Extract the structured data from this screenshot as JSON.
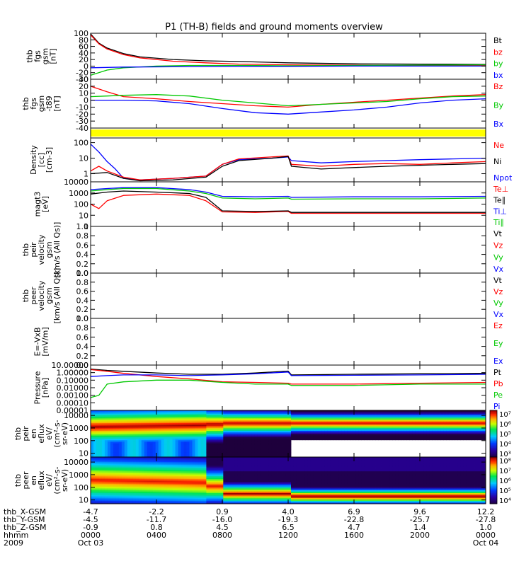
{
  "title": "P1 (TH-B) fields and ground moments overview",
  "colors": {
    "black": "#000000",
    "red": "#ff0000",
    "green": "#00c800",
    "blue": "#0000ff",
    "yellow": "#ffff00"
  },
  "chart_data": [
    {
      "type": "line",
      "ylabel_lines": [
        "thb",
        "fgs",
        "gsm",
        "[nT]"
      ],
      "yticks": [
        "100",
        "80",
        "60",
        "40",
        "20",
        "0",
        "-20",
        "-40"
      ],
      "ylim": [
        -40,
        100
      ],
      "legend": [
        "Bt",
        "bz",
        "by",
        "bx"
      ],
      "legend_colors": [
        "#000000",
        "#ff0000",
        "#00c800",
        "#0000ff"
      ],
      "series": [
        {
          "name": "Bt",
          "color": "#000000",
          "x": [
            0,
            0.5,
            1,
            2,
            3,
            5,
            7,
            9,
            12,
            16,
            20,
            24
          ],
          "y": [
            98,
            70,
            55,
            38,
            28,
            20,
            16,
            14,
            10,
            7,
            6,
            5
          ]
        },
        {
          "name": "bz",
          "color": "#ff0000",
          "x": [
            0,
            0.5,
            1,
            2,
            3,
            5,
            7,
            9,
            12,
            16,
            20,
            24
          ],
          "y": [
            95,
            68,
            52,
            35,
            25,
            15,
            10,
            6,
            4,
            3,
            2,
            2
          ]
        },
        {
          "name": "by",
          "color": "#00c800",
          "x": [
            0,
            1,
            2,
            4,
            6,
            9,
            12,
            16,
            20,
            24
          ],
          "y": [
            -28,
            -12,
            -5,
            0,
            2,
            2,
            1,
            2,
            3,
            4
          ]
        },
        {
          "name": "bx",
          "color": "#0000ff",
          "x": [
            0,
            2,
            5,
            9,
            12,
            16,
            20,
            24
          ],
          "y": [
            -5,
            -3,
            -2,
            -1,
            -1,
            0,
            0,
            0
          ]
        }
      ]
    },
    {
      "type": "line",
      "ylabel_lines": [
        "thb",
        "fgs",
        "gsm",
        "-t89",
        "[nT]"
      ],
      "yticks": [
        "30",
        "20",
        "10",
        "0",
        "-10",
        "-20",
        "-30",
        "-40"
      ],
      "ylim": [
        -40,
        30
      ],
      "legend": [
        "Bz",
        "By",
        "Bx"
      ],
      "legend_colors": [
        "#ff0000",
        "#00c800",
        "#0000ff"
      ],
      "series": [
        {
          "name": "Bz",
          "color": "#ff0000",
          "x": [
            0,
            1,
            2,
            4,
            6,
            8,
            10,
            12,
            14,
            16,
            18,
            20,
            22,
            24
          ],
          "y": [
            20,
            12,
            5,
            2,
            -2,
            -5,
            -8,
            -10,
            -6,
            -3,
            0,
            3,
            6,
            8
          ]
        },
        {
          "name": "By",
          "color": "#00c800",
          "x": [
            0,
            1,
            2,
            4,
            6,
            8,
            10,
            12,
            14,
            16,
            18,
            20,
            22,
            24
          ],
          "y": [
            5,
            6,
            7,
            8,
            6,
            0,
            -4,
            -8,
            -6,
            -4,
            -2,
            2,
            5,
            6
          ]
        },
        {
          "name": "Bx",
          "color": "#0000ff",
          "x": [
            0,
            2,
            4,
            6,
            8,
            10,
            12,
            14,
            16,
            18,
            20,
            22,
            24
          ],
          "y": [
            0,
            0,
            -1,
            -5,
            -12,
            -18,
            -20,
            -17,
            -14,
            -10,
            -4,
            0,
            2
          ]
        }
      ]
    },
    {
      "type": "line",
      "ylabel_lines": [
        "Density",
        "[cc]",
        "[cm-3]"
      ],
      "yticks": [
        "100",
        "10",
        "1"
      ],
      "ylim": [
        0.3,
        200
      ],
      "log": true,
      "legend": [
        "Ne",
        "Ni",
        "Npot"
      ],
      "legend_colors": [
        "#ff0000",
        "#000000",
        "#0000ff"
      ],
      "series": [
        {
          "name": "Npot",
          "color": "#0000ff",
          "x": [
            0,
            0.5,
            1,
            1.5,
            2,
            3,
            5,
            7,
            8,
            9,
            11,
            12,
            12.2,
            14,
            16,
            18,
            20,
            22,
            24
          ],
          "y": [
            80,
            25,
            6,
            2,
            0.5,
            0.4,
            0.5,
            0.7,
            4,
            8,
            10,
            12,
            7,
            5,
            6,
            7,
            8,
            9,
            10
          ]
        },
        {
          "name": "Ne",
          "color": "#ff0000",
          "x": [
            0,
            0.5,
            1,
            2,
            3,
            5,
            7,
            8,
            9,
            11,
            12,
            12.2,
            14,
            16,
            18,
            20,
            22,
            24
          ],
          "y": [
            1.5,
            3,
            1.5,
            0.6,
            0.4,
            0.5,
            0.7,
            4,
            9,
            12,
            14,
            4,
            3,
            4,
            4.5,
            4,
            5,
            6
          ]
        },
        {
          "name": "Ni",
          "color": "#000000",
          "x": [
            0,
            1,
            2,
            3,
            5,
            7,
            8,
            9,
            11,
            12,
            12.2,
            14,
            16,
            18,
            20,
            22,
            24
          ],
          "y": [
            1,
            1.2,
            0.5,
            0.35,
            0.4,
            0.6,
            3,
            7,
            10,
            13,
            3,
            2,
            2.5,
            3,
            3.5,
            4,
            4.5
          ]
        }
      ]
    },
    {
      "type": "line",
      "ylabel_lines": [
        "magt3",
        "[eV]"
      ],
      "yticks": [
        "10000",
        "1000",
        "100",
        "10",
        "1"
      ],
      "ylim": [
        1,
        10000
      ],
      "log": true,
      "legend": [
        "Te⊥",
        "Te∥",
        "Ti⊥",
        "Ti∥"
      ],
      "legend_colors": [
        "#ff0000",
        "#000000",
        "#0000ff",
        "#00c800"
      ],
      "series": [
        {
          "name": "Ti⊥",
          "color": "#0000ff",
          "x": [
            0,
            1,
            2,
            4,
            6,
            7,
            8,
            10,
            12,
            12.2,
            16,
            20,
            24
          ],
          "y": [
            2000,
            2500,
            3000,
            3000,
            2000,
            1200,
            500,
            450,
            500,
            400,
            450,
            450,
            500
          ]
        },
        {
          "name": "Ti∥",
          "color": "#00c800",
          "x": [
            0,
            1,
            2,
            4,
            6,
            7,
            8,
            10,
            12,
            12.2,
            16,
            20,
            24
          ],
          "y": [
            1500,
            2000,
            2500,
            2500,
            1500,
            900,
            350,
            300,
            350,
            280,
            300,
            300,
            350
          ]
        },
        {
          "name": "Te⊥",
          "color": "#ff0000",
          "x": [
            0,
            0.5,
            1,
            2,
            4,
            6,
            7,
            8,
            10,
            12,
            12.2,
            16,
            20,
            24
          ],
          "y": [
            100,
            40,
            200,
            600,
            800,
            600,
            200,
            20,
            18,
            22,
            15,
            15,
            15,
            15
          ]
        },
        {
          "name": "Te∥",
          "color": "#000000",
          "x": [
            0,
            1,
            2,
            4,
            6,
            7,
            8,
            10,
            12,
            12.2,
            16,
            20,
            24
          ],
          "y": [
            800,
            1200,
            1500,
            1200,
            900,
            400,
            25,
            22,
            25,
            18,
            18,
            18,
            18
          ]
        }
      ]
    },
    {
      "type": "line",
      "ylabel_lines": [
        "thb",
        "peir",
        "velocity",
        "gsm",
        "[km/s (All Qs)]"
      ],
      "yticks": [
        "1.0",
        "0.8",
        "0.6",
        "0.4",
        "0.2",
        "0.0"
      ],
      "ylim": [
        0,
        1
      ],
      "legend": [
        "Vt",
        "Vz",
        "Vy",
        "Vx"
      ],
      "legend_colors": [
        "#000000",
        "#ff0000",
        "#00c800",
        "#0000ff"
      ],
      "series": []
    },
    {
      "type": "line",
      "ylabel_lines": [
        "thb",
        "peer",
        "velocity",
        "gsm",
        "[km/s (All Qs)]"
      ],
      "yticks": [
        "1.0",
        "0.8",
        "0.6",
        "0.4",
        "0.2",
        "0.0"
      ],
      "ylim": [
        0,
        1
      ],
      "legend": [
        "Vt",
        "Vz",
        "Vy",
        "Vx"
      ],
      "legend_colors": [
        "#000000",
        "#ff0000",
        "#00c800",
        "#0000ff"
      ],
      "series": []
    },
    {
      "type": "line",
      "ylabel_lines": [
        "E=-VxB",
        "[mV/m]"
      ],
      "yticks": [
        "1.0",
        "0.8",
        "0.6",
        "0.4",
        "0.2",
        "0.0"
      ],
      "ylim": [
        0,
        1
      ],
      "legend": [
        "Ez",
        "Ey",
        "Ex"
      ],
      "legend_colors": [
        "#ff0000",
        "#00c800",
        "#0000ff"
      ],
      "series": []
    },
    {
      "type": "line",
      "ylabel_lines": [
        "Pressure",
        "[nPa]"
      ],
      "yticks": [
        "10.00000",
        "1.00000",
        "0.10000",
        "0.01000",
        "0.00100",
        "0.00010",
        "0.00001"
      ],
      "ylim": [
        1e-05,
        10
      ],
      "log": true,
      "legend": [
        "Pt",
        "Pb",
        "Pe",
        "Pi"
      ],
      "legend_colors": [
        "#000000",
        "#ff0000",
        "#00c800",
        "#0000ff"
      ],
      "series": [
        {
          "name": "Pt",
          "color": "#000000",
          "x": [
            0,
            1,
            2,
            4,
            6,
            8,
            10,
            12,
            12.2,
            16,
            20,
            24
          ],
          "y": [
            3,
            2,
            1.5,
            0.9,
            0.6,
            0.6,
            0.9,
            1.6,
            0.5,
            0.6,
            0.7,
            0.8
          ]
        },
        {
          "name": "Pb",
          "color": "#ff0000",
          "x": [
            0,
            1,
            2,
            4,
            6,
            8,
            10,
            12,
            12.2,
            16,
            20,
            24
          ],
          "y": [
            2.5,
            1.5,
            0.8,
            0.3,
            0.15,
            0.06,
            0.05,
            0.04,
            0.03,
            0.03,
            0.04,
            0.05
          ]
        },
        {
          "name": "Pe",
          "color": "#00c800",
          "x": [
            0,
            0.5,
            1,
            2,
            4,
            6,
            8,
            10,
            12,
            12.2,
            16,
            20,
            24
          ],
          "y": [
            0.0005,
            0.001,
            0.03,
            0.06,
            0.1,
            0.1,
            0.05,
            0.03,
            0.03,
            0.02,
            0.02,
            0.03,
            0.03
          ]
        },
        {
          "name": "Pi",
          "color": "#0000ff",
          "x": [
            0,
            1,
            2,
            4,
            6,
            8,
            10,
            12,
            12.2,
            16,
            20,
            24
          ],
          "y": [
            0.3,
            0.4,
            0.5,
            0.5,
            0.4,
            0.5,
            0.7,
            1.2,
            0.4,
            0.45,
            0.5,
            0.6
          ]
        }
      ]
    },
    {
      "type": "heatmap",
      "ylabel_lines": [
        "thb",
        "peir",
        "en",
        "eflux",
        "eV/",
        "(cm²-s-",
        "sr-eV)"
      ],
      "yticks": [
        "10000",
        "1000",
        "100",
        "10"
      ],
      "ylim": [
        5,
        25000
      ],
      "log": true,
      "colorbar_ticks": [
        "10⁷",
        "10⁶",
        "10⁵",
        "10⁴",
        "10³"
      ],
      "data_gap": {
        "from_hour": 12.2,
        "to_hour": 24,
        "energy_below_eV": 100
      }
    },
    {
      "type": "heatmap",
      "ylabel_lines": [
        "thb",
        "peer",
        "en",
        "eflux",
        "eV/",
        "(cm²-s-",
        "sr-eV)"
      ],
      "yticks": [
        "10000",
        "1000",
        "100",
        "10"
      ],
      "ylim": [
        5,
        25000
      ],
      "log": true,
      "colorbar_ticks": [
        "10⁸",
        "10⁷",
        "10⁶",
        "10⁵",
        "10⁴"
      ]
    }
  ],
  "xaxis": {
    "range_hours": [
      0,
      24
    ],
    "tick_hours": [
      0,
      4,
      8,
      12,
      16,
      20,
      24
    ],
    "rows": [
      {
        "label": "thb_X-GSM",
        "values": [
          "-4.7",
          "-2.2",
          "0.9",
          "4.0",
          "6.9",
          "9.6",
          "12.2"
        ]
      },
      {
        "label": "thb_Y-GSM",
        "values": [
          "-4.5",
          "-11.7",
          "-16.0",
          "-19.3",
          "-22.8",
          "-25.7",
          "-27.8"
        ]
      },
      {
        "label": "thb_Z-GSM",
        "values": [
          "-0.9",
          "0.8",
          "4.5",
          "6.5",
          "4.7",
          "1.4",
          "1.0"
        ]
      },
      {
        "label": "hhmm",
        "values": [
          "0000",
          "0400",
          "0800",
          "1200",
          "1600",
          "2000",
          "0000"
        ]
      },
      {
        "label": "2009",
        "values": [
          "Oct 03",
          "",
          "",
          "",
          "",
          "",
          "Oct 04"
        ]
      }
    ]
  }
}
